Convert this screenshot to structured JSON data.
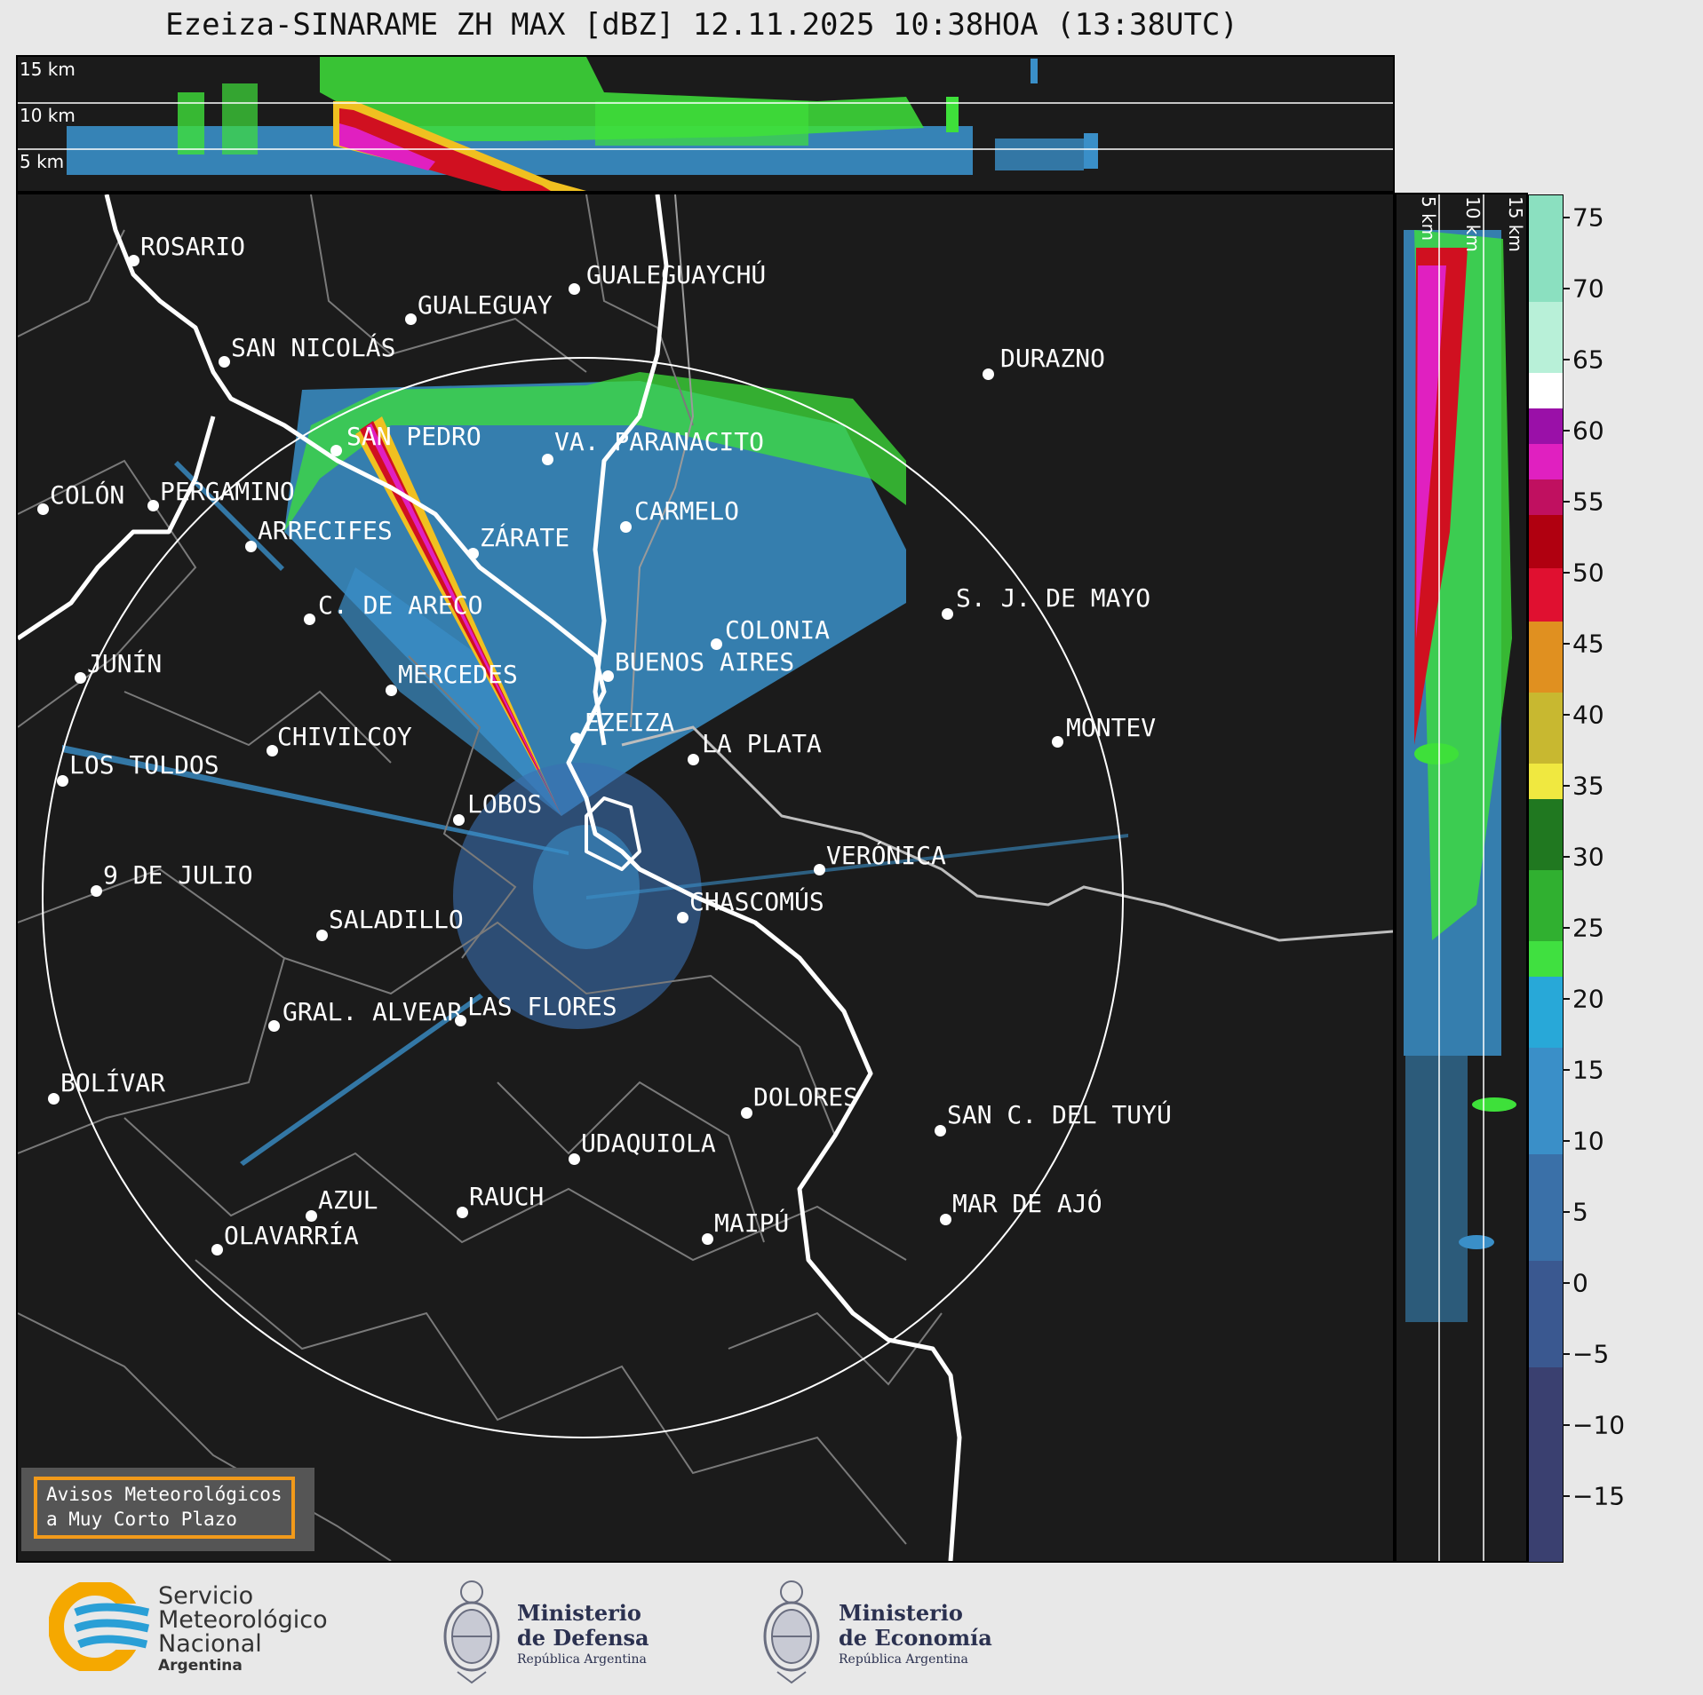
{
  "title": "Ezeiza-SINARAME ZH MAX [dBZ] 12.11.2025 10:38HOA (13:38UTC)",
  "top_panel": {
    "height_labels": [
      "15 km",
      "10 km",
      "5 km"
    ]
  },
  "side_panel": {
    "height_labels": [
      "5 km",
      "10 km",
      "15 km"
    ]
  },
  "colorbar": {
    "unit": "dBZ",
    "ticks": [
      "75",
      "70",
      "65",
      "60",
      "55",
      "50",
      "45",
      "40",
      "35",
      "30",
      "25",
      "20",
      "15",
      "10",
      "5",
      "0",
      "−5",
      "−10",
      "−15"
    ]
  },
  "cities": [
    {
      "name": "ROSARIO"
    },
    {
      "name": "GUALEGUAYCHÚ"
    },
    {
      "name": "GUALEGUAY"
    },
    {
      "name": "SAN NICOLÁS"
    },
    {
      "name": "DURAZNO"
    },
    {
      "name": "SAN PEDRO"
    },
    {
      "name": "VA. PARANACITO"
    },
    {
      "name": "COLÓN"
    },
    {
      "name": "PERGAMINO"
    },
    {
      "name": "CARMELO"
    },
    {
      "name": "ARRECIFES"
    },
    {
      "name": "ZÁRATE"
    },
    {
      "name": "S. J. DE MAYO"
    },
    {
      "name": "C. DE ARECO"
    },
    {
      "name": "COLONIA"
    },
    {
      "name": "JUNÍN"
    },
    {
      "name": "BUENOS AIRES"
    },
    {
      "name": "MERCEDES"
    },
    {
      "name": "EZEIZA"
    },
    {
      "name": "MONTEV"
    },
    {
      "name": "CHIVILCOY"
    },
    {
      "name": "LA PLATA"
    },
    {
      "name": "LOS TOLDOS"
    },
    {
      "name": "LOBOS"
    },
    {
      "name": "VERÓNICA"
    },
    {
      "name": "9 DE JULIO"
    },
    {
      "name": "CHASCOMÚS"
    },
    {
      "name": "SALADILLO"
    },
    {
      "name": "GRAL. ALVEAR"
    },
    {
      "name": "LAS FLORES"
    },
    {
      "name": "BOLÍVAR"
    },
    {
      "name": "DOLORES"
    },
    {
      "name": "SAN C. DEL TUYÚ"
    },
    {
      "name": "UDAQUIOLA"
    },
    {
      "name": "MAR DE AJÓ"
    },
    {
      "name": "AZUL"
    },
    {
      "name": "RAUCH"
    },
    {
      "name": "OLAVARRÍA"
    },
    {
      "name": "MAIPÚ"
    }
  ],
  "aviso": {
    "line1": "Avisos Meteorológicos",
    "line2": "a Muy Corto Plazo"
  },
  "logos": {
    "smn": {
      "line1": "Servicio",
      "line2": "Meteorológico",
      "line3": "Nacional",
      "line4": "Argentina",
      "colors": [
        "#f5a800",
        "#2a9fd6"
      ]
    },
    "defensa": {
      "line1": "Ministerio",
      "line2": "de Defensa",
      "line3": "República Argentina"
    },
    "economia": {
      "line1": "Ministerio",
      "line2": "de Economía",
      "line3": "República Argentina"
    }
  },
  "palette": {
    "background": "#1b1b1b",
    "weak_echo": "#3a8fc8",
    "moderate_echo": "#3ee03a",
    "strong_echo": "#d01020",
    "very_strong_echo": "#e020c0",
    "borders": "#7a7a7a",
    "rivers": "#ffffff"
  }
}
